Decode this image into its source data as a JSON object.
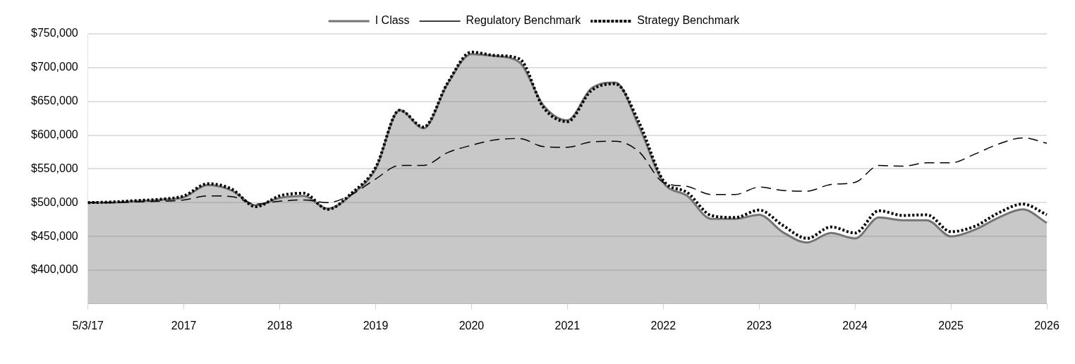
{
  "chart_data": {
    "type": "area",
    "categories": [
      "5/3/17",
      null,
      null,
      null,
      "2017",
      null,
      null,
      null,
      "2018",
      null,
      null,
      null,
      "2019",
      null,
      null,
      null,
      "2020",
      null,
      null,
      null,
      "2021",
      null,
      null,
      null,
      "2022",
      null,
      null,
      null,
      "2023",
      null,
      null,
      null,
      "2024",
      null,
      null,
      null,
      "2025",
      null,
      null,
      null,
      "2026"
    ],
    "series": [
      {
        "name": "I Class",
        "color": "#757575",
        "line_style": "solid",
        "values": [
          500000,
          500000,
          502000,
          504000,
          508000,
          526000,
          518000,
          496000,
          507000,
          510000,
          491000,
          512000,
          550000,
          637000,
          610000,
          676000,
          720000,
          717000,
          708000,
          644000,
          622000,
          669000,
          678000,
          612000,
          530000,
          510000,
          476000,
          476000,
          482000,
          456000,
          441000,
          455000,
          447000,
          478000,
          474000,
          474000,
          450000,
          460000,
          478000,
          490000,
          470000
        ]
      },
      {
        "name": "Regulatory Benchmark",
        "type": "line",
        "color": "#000000",
        "line_style": "dashed",
        "values": [
          500000,
          500000,
          501000,
          502000,
          504000,
          510000,
          509000,
          498000,
          502000,
          504000,
          500000,
          512000,
          535000,
          555000,
          555000,
          574000,
          585000,
          593000,
          595000,
          583000,
          582000,
          590000,
          591000,
          575000,
          530000,
          524000,
          512000,
          512000,
          523000,
          518000,
          517000,
          527000,
          530000,
          555000,
          554000,
          559000,
          559000,
          572000,
          587000,
          596000,
          588000
        ]
      },
      {
        "name": "Strategy Benchmark",
        "type": "line",
        "color": "#000000",
        "line_style": "dotted",
        "values": [
          500000,
          501000,
          503000,
          505000,
          510000,
          528000,
          520000,
          494000,
          510000,
          514000,
          490000,
          514000,
          552000,
          637000,
          612000,
          677000,
          723000,
          718000,
          713000,
          641000,
          620000,
          666000,
          676000,
          618000,
          533000,
          515000,
          481000,
          478000,
          489000,
          466000,
          447000,
          464000,
          455000,
          488000,
          481000,
          482000,
          457000,
          465000,
          485000,
          498000,
          482000
        ]
      }
    ],
    "ylim": [
      350000,
      750000
    ],
    "yticks": [
      {
        "value": 400000,
        "label": "$400,000"
      },
      {
        "value": 450000,
        "label": "$450,000"
      },
      {
        "value": 500000,
        "label": "$500,000"
      },
      {
        "value": 550000,
        "label": "$550,000"
      },
      {
        "value": 600000,
        "label": "$600,000"
      },
      {
        "value": 650000,
        "label": "$650,000"
      },
      {
        "value": 700000,
        "label": "$700,000"
      },
      {
        "value": 750000,
        "label": "$750,000"
      }
    ],
    "grid": "y",
    "legend": "top",
    "marker": "none"
  }
}
